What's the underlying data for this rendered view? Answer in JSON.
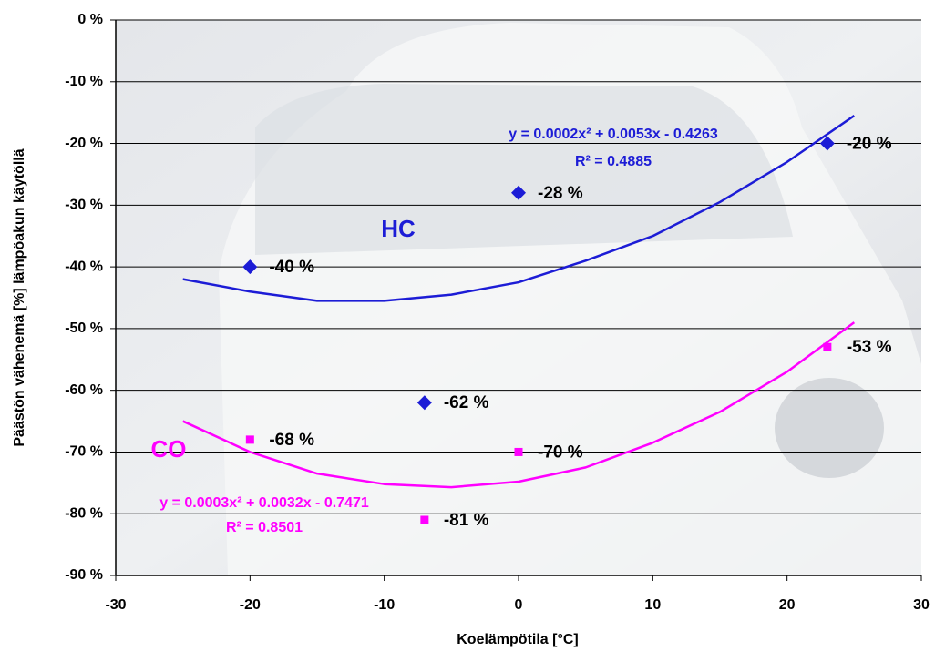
{
  "chart_data": {
    "type": "scatter",
    "x_label": "Koelämpötila [°C]",
    "y_label": "Päästön vähenemä [%] lämpöakun käytöllä",
    "xlim": [
      -30,
      30
    ],
    "xticks": [
      -30,
      -20,
      -10,
      0,
      10,
      20,
      30
    ],
    "ylim": [
      -90,
      0
    ],
    "yticks": [
      {
        "value": 0,
        "label": "0 %"
      },
      {
        "value": -10,
        "label": "-10 %"
      },
      {
        "value": -20,
        "label": "-20 %"
      },
      {
        "value": -30,
        "label": "-30 %"
      },
      {
        "value": -40,
        "label": "-40 %"
      },
      {
        "value": -50,
        "label": "-50 %"
      },
      {
        "value": -60,
        "label": "-60 %"
      },
      {
        "value": -70,
        "label": "-70 %"
      },
      {
        "value": -80,
        "label": "-80 %"
      },
      {
        "value": -90,
        "label": "-90 %"
      }
    ],
    "grid": true,
    "series": [
      {
        "name": "HC",
        "color": "#1c1cd6",
        "marker": "diamond",
        "x": [
          -20,
          -7,
          0,
          23
        ],
        "values": [
          -40,
          -62,
          -28,
          -20
        ],
        "value_labels": [
          "-40 %",
          "-62 %",
          "-28 %",
          "-20 %"
        ],
        "trendline": {
          "equation": "y = 0.0002x² + 0.0053x - 0.4263",
          "r2": "R² = 0.4885",
          "x": [
            -25,
            -20,
            -15,
            -10,
            -5,
            0,
            5,
            10,
            15,
            20,
            25
          ],
          "values": [
            -42,
            -44,
            -45.5,
            -45.5,
            -44.5,
            -42.5,
            -39,
            -35,
            -29.5,
            -23,
            -15.5
          ]
        }
      },
      {
        "name": "CO",
        "color": "#ff00ff",
        "marker": "square",
        "x": [
          -20,
          -7,
          0,
          23
        ],
        "values": [
          -68,
          -81,
          -70,
          -53
        ],
        "value_labels": [
          "-68 %",
          "-81 %",
          "-70 %",
          "-53 %"
        ],
        "trendline": {
          "equation": "y = 0.0003x² + 0.0032x - 0.7471",
          "r2": "R² = 0.8501",
          "x": [
            -25,
            -20,
            -15,
            -10,
            -5,
            0,
            5,
            10,
            15,
            20,
            25
          ],
          "values": [
            -65,
            -70,
            -73.5,
            -75.2,
            -75.7,
            -74.8,
            -72.5,
            -68.5,
            -63.5,
            -57,
            -49
          ]
        }
      }
    ]
  }
}
